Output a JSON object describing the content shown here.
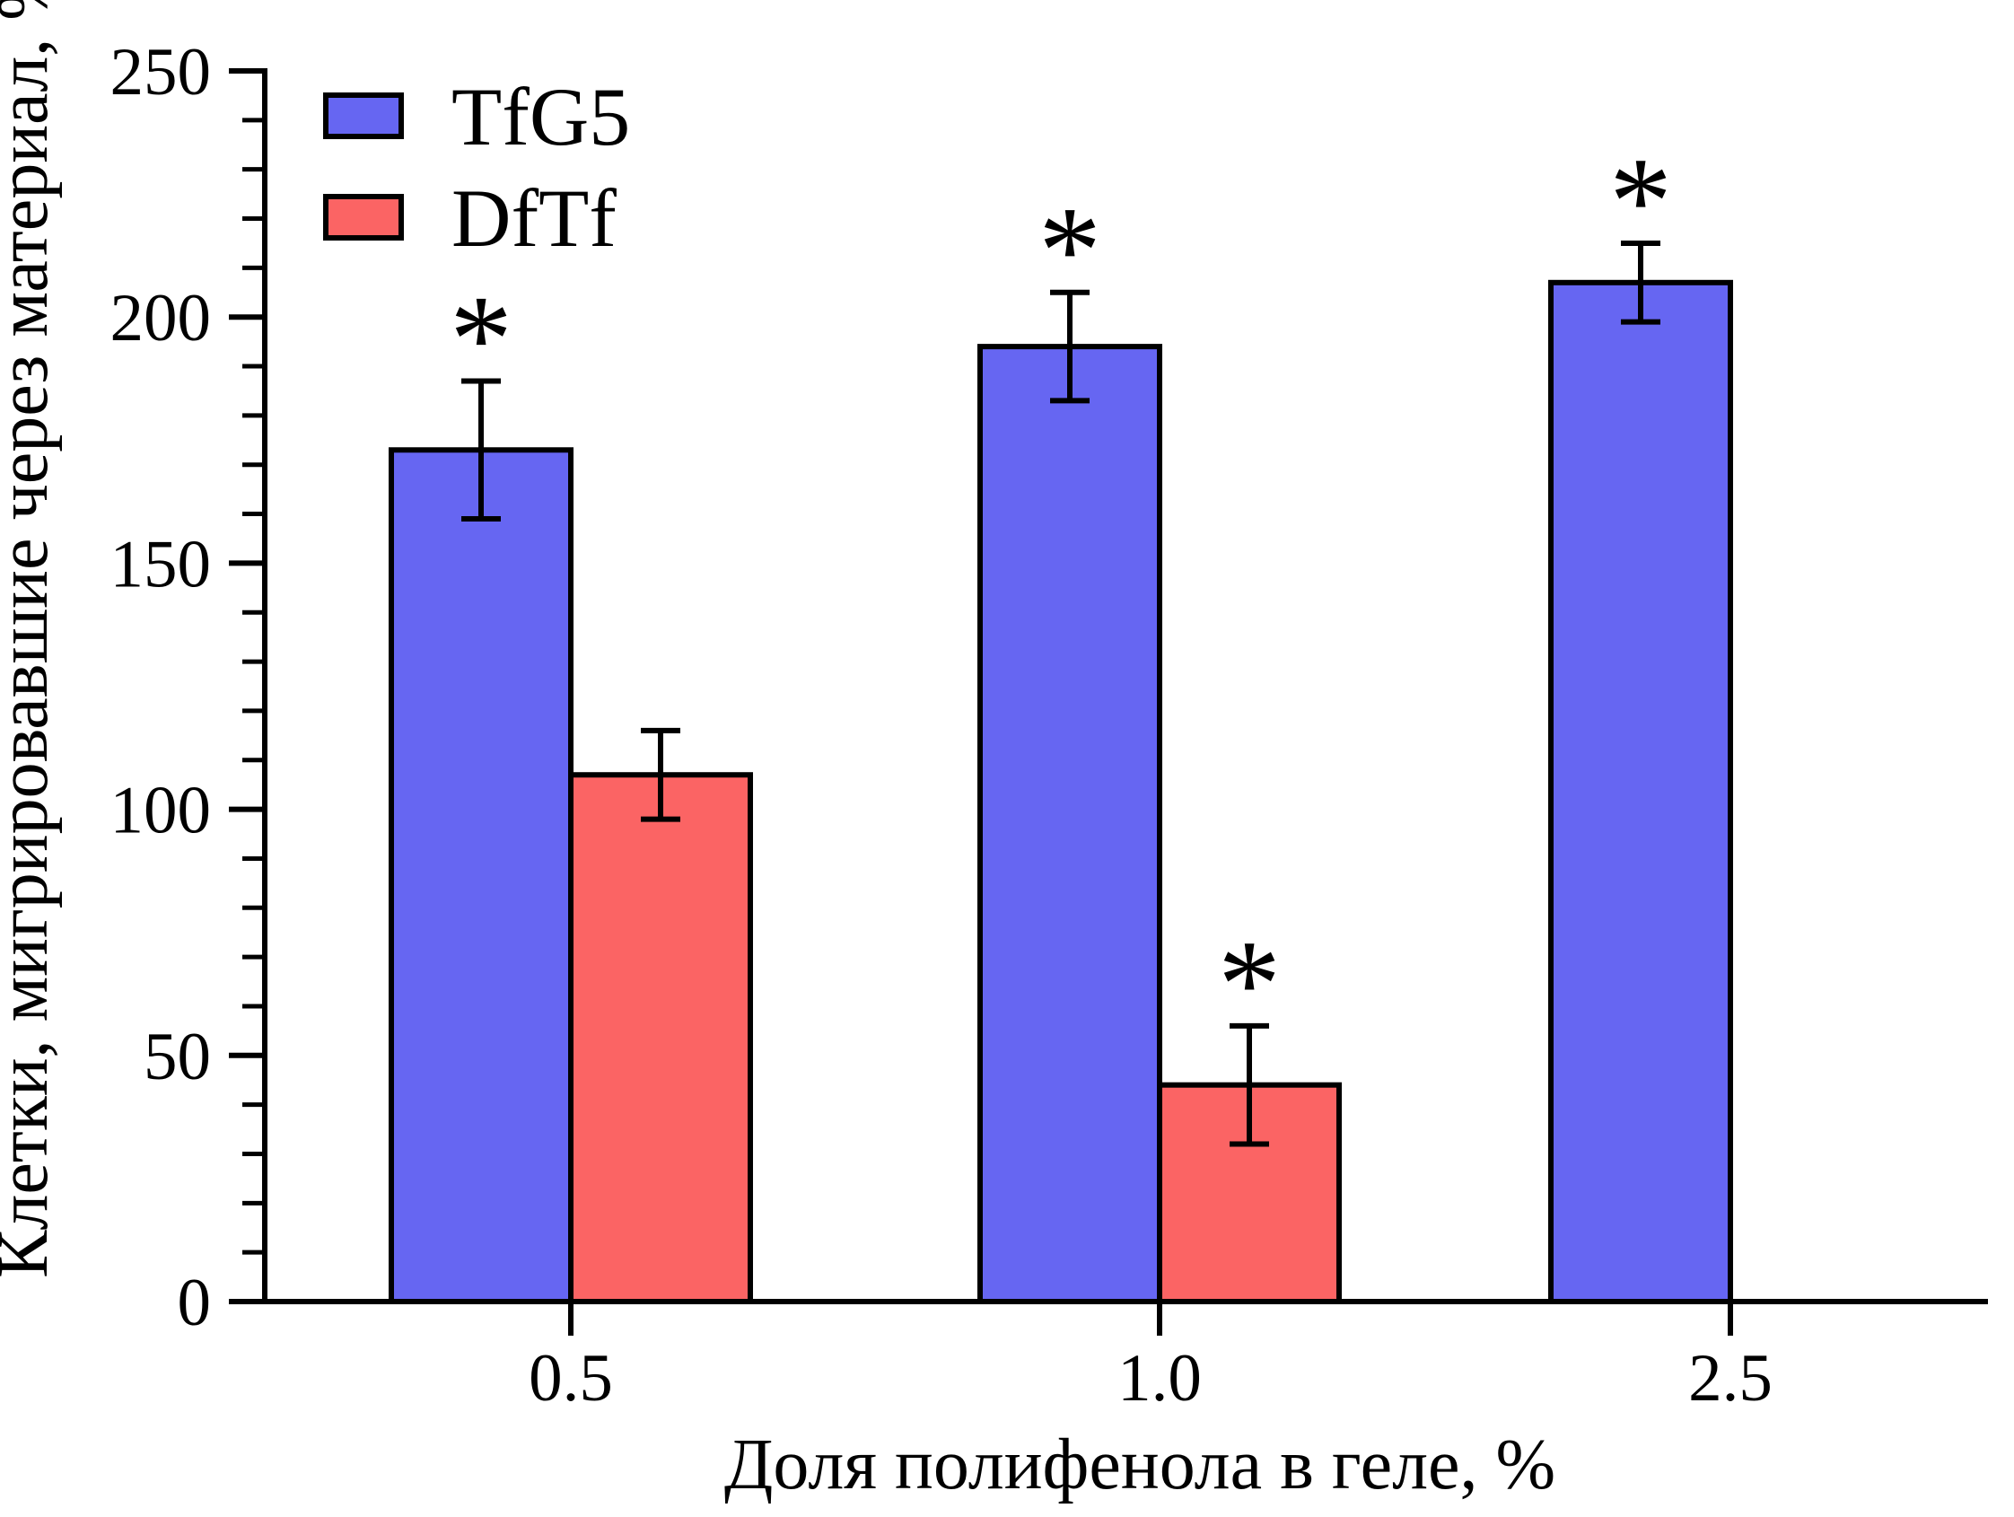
{
  "chart_data": {
    "type": "bar",
    "title": "",
    "xlabel": "Доля полифенола в геле, %",
    "ylabel": "Клетки, мигрировавшие через материал, %",
    "categories": [
      "0.5",
      "1.0",
      "2.5"
    ],
    "series": [
      {
        "name": "TfG5",
        "color": "#6666F2",
        "values": [
          173,
          194,
          207
        ],
        "errors": [
          14,
          11,
          8
        ],
        "significant": [
          true,
          true,
          true
        ]
      },
      {
        "name": "DfTf",
        "color": "#FB6464",
        "values": [
          107,
          44,
          null
        ],
        "errors": [
          9,
          12,
          null
        ],
        "significant": [
          false,
          true,
          false
        ]
      }
    ],
    "ylim": [
      0,
      250
    ],
    "ytick_step": 50,
    "yminor_step": 10,
    "ytick_labels": [
      "0",
      "50",
      "100",
      "150",
      "200",
      "250"
    ],
    "significance_marker": "*",
    "legend_position": "top-left",
    "grid": false,
    "bar_outline_color": "#000000",
    "axis_color": "#000000"
  }
}
